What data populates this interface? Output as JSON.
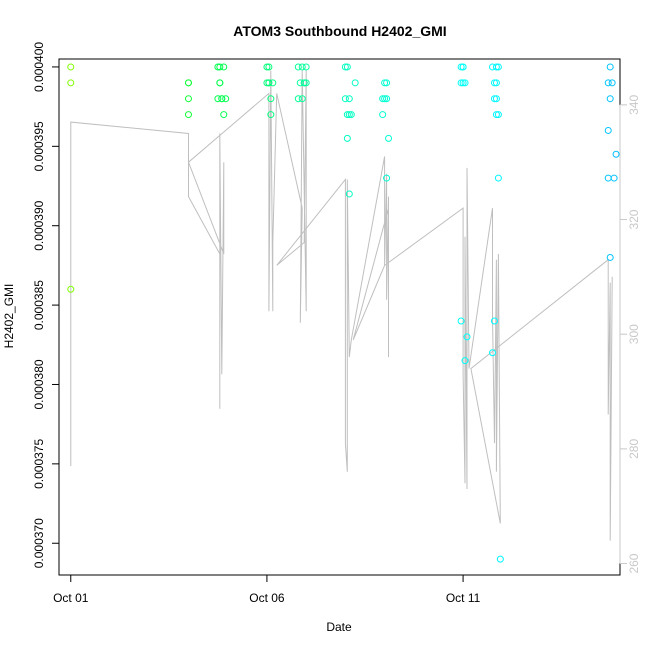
{
  "chart_data": {
    "type": "scatter",
    "title": "ATOM3 Southbound H2402_GMI",
    "xlabel": "Date",
    "ylabel": "H2402_GMI",
    "x_ticks": [
      "Oct 01",
      "Oct 06",
      "Oct 11"
    ],
    "y_ticks": [
      "0.000370",
      "0.000375",
      "0.000380",
      "0.000385",
      "0.000390",
      "0.000395",
      "0.000400"
    ],
    "y2_ticks": [
      "260",
      "280",
      "300",
      "320",
      "340"
    ],
    "xlim_days": [
      0.7,
      15.0
    ],
    "ylim": [
      0.000368,
      0.0004005
    ],
    "y2lim": [
      258,
      348
    ],
    "colors": {
      "axis": "#000000",
      "secondary_axis": "#c8c8c8",
      "line": "#bfbfbf"
    },
    "point_series": {
      "name": "H2402_GMI",
      "color_gradient": [
        "#80ff00",
        "#00ff40",
        "#00ffc0",
        "#00ffff",
        "#00c0ff"
      ],
      "points": [
        {
          "x": 1.0,
          "y": 0.0004
        },
        {
          "x": 1.0,
          "y": 0.000399
        },
        {
          "x": 1.0,
          "y": 0.000386
        },
        {
          "x": 4.0,
          "y": 0.000399
        },
        {
          "x": 4.0,
          "y": 0.000398
        },
        {
          "x": 4.0,
          "y": 0.000397
        },
        {
          "x": 4.0,
          "y": 0.000399
        },
        {
          "x": 4.75,
          "y": 0.0004
        },
        {
          "x": 4.8,
          "y": 0.000399
        },
        {
          "x": 4.85,
          "y": 0.000398
        },
        {
          "x": 4.8,
          "y": 0.000399
        },
        {
          "x": 4.9,
          "y": 0.0004
        },
        {
          "x": 4.75,
          "y": 0.000398
        },
        {
          "x": 4.85,
          "y": 0.000398
        },
        {
          "x": 4.8,
          "y": 0.0004
        },
        {
          "x": 4.95,
          "y": 0.000398
        },
        {
          "x": 4.9,
          "y": 0.000397
        },
        {
          "x": 6.0,
          "y": 0.0004
        },
        {
          "x": 6.05,
          "y": 0.000399
        },
        {
          "x": 6.1,
          "y": 0.000398
        },
        {
          "x": 6.05,
          "y": 0.000399
        },
        {
          "x": 6.15,
          "y": 0.000399
        },
        {
          "x": 6.1,
          "y": 0.000397
        },
        {
          "x": 6.0,
          "y": 0.000399
        },
        {
          "x": 6.05,
          "y": 0.0004
        },
        {
          "x": 6.8,
          "y": 0.0004
        },
        {
          "x": 6.9,
          "y": 0.0004
        },
        {
          "x": 6.95,
          "y": 0.000399
        },
        {
          "x": 6.8,
          "y": 0.000398
        },
        {
          "x": 6.85,
          "y": 0.000399
        },
        {
          "x": 7.0,
          "y": 0.0004
        },
        {
          "x": 6.9,
          "y": 0.000398
        },
        {
          "x": 6.95,
          "y": 0.000399
        },
        {
          "x": 7.0,
          "y": 0.000399
        },
        {
          "x": 8.0,
          "y": 0.0004
        },
        {
          "x": 8.05,
          "y": 0.0004
        },
        {
          "x": 8.1,
          "y": 0.000398
        },
        {
          "x": 8.0,
          "y": 0.000398
        },
        {
          "x": 8.05,
          "y": 0.000397
        },
        {
          "x": 8.15,
          "y": 0.000397
        },
        {
          "x": 8.25,
          "y": 0.000399
        },
        {
          "x": 8.1,
          "y": 0.000397
        },
        {
          "x": 8.05,
          "y": 0.0003955
        },
        {
          "x": 8.1,
          "y": 0.000392
        },
        {
          "x": 8.95,
          "y": 0.000398
        },
        {
          "x": 9.05,
          "y": 0.000399
        },
        {
          "x": 9.0,
          "y": 0.000398
        },
        {
          "x": 9.05,
          "y": 0.000398
        },
        {
          "x": 8.95,
          "y": 0.000397
        },
        {
          "x": 9.0,
          "y": 0.000399
        },
        {
          "x": 9.1,
          "y": 0.0003955
        },
        {
          "x": 9.05,
          "y": 0.000393
        },
        {
          "x": 10.95,
          "y": 0.0004
        },
        {
          "x": 11.0,
          "y": 0.0004
        },
        {
          "x": 11.05,
          "y": 0.000399
        },
        {
          "x": 11.0,
          "y": 0.000399
        },
        {
          "x": 10.95,
          "y": 0.000399
        },
        {
          "x": 11.0,
          "y": 0.0004
        },
        {
          "x": 10.95,
          "y": 0.000384
        },
        {
          "x": 11.1,
          "y": 0.000383
        },
        {
          "x": 11.05,
          "y": 0.0003815
        },
        {
          "x": 11.75,
          "y": 0.0004
        },
        {
          "x": 11.85,
          "y": 0.0004
        },
        {
          "x": 11.9,
          "y": 0.0004
        },
        {
          "x": 11.8,
          "y": 0.000399
        },
        {
          "x": 11.85,
          "y": 0.000399
        },
        {
          "x": 11.8,
          "y": 0.000398
        },
        {
          "x": 11.85,
          "y": 0.000398
        },
        {
          "x": 11.9,
          "y": 0.000397
        },
        {
          "x": 11.85,
          "y": 0.000397
        },
        {
          "x": 11.9,
          "y": 0.000393
        },
        {
          "x": 11.8,
          "y": 0.000384
        },
        {
          "x": 11.75,
          "y": 0.000382
        },
        {
          "x": 11.95,
          "y": 0.000369
        },
        {
          "x": 14.75,
          "y": 0.0004
        },
        {
          "x": 14.7,
          "y": 0.000399
        },
        {
          "x": 14.8,
          "y": 0.000399
        },
        {
          "x": 14.75,
          "y": 0.000398
        },
        {
          "x": 14.7,
          "y": 0.000396
        },
        {
          "x": 14.9,
          "y": 0.0003945
        },
        {
          "x": 14.85,
          "y": 0.000393
        },
        {
          "x": 14.7,
          "y": 0.000393
        },
        {
          "x": 14.75,
          "y": 0.000388
        }
      ]
    },
    "line_series": {
      "name": "secondary",
      "color": "#bfbfbf",
      "points": [
        {
          "x": 1.0,
          "y": 277
        },
        {
          "x": 1.0,
          "y": 337
        },
        {
          "x": 4.0,
          "y": 335
        },
        {
          "x": 4.0,
          "y": 330
        },
        {
          "x": 4.0,
          "y": 324
        },
        {
          "x": 4.8,
          "y": 314
        },
        {
          "x": 4.8,
          "y": 287
        },
        {
          "x": 4.8,
          "y": 335
        },
        {
          "x": 4.85,
          "y": 293
        },
        {
          "x": 4.9,
          "y": 330
        },
        {
          "x": 4.9,
          "y": 314
        },
        {
          "x": 4.0,
          "y": 330
        },
        {
          "x": 6.05,
          "y": 342
        },
        {
          "x": 6.05,
          "y": 304
        },
        {
          "x": 6.1,
          "y": 346
        },
        {
          "x": 6.15,
          "y": 304
        },
        {
          "x": 6.15,
          "y": 316
        },
        {
          "x": 6.25,
          "y": 342
        },
        {
          "x": 6.9,
          "y": 322
        },
        {
          "x": 6.85,
          "y": 302
        },
        {
          "x": 6.9,
          "y": 346
        },
        {
          "x": 7.0,
          "y": 304
        },
        {
          "x": 7.0,
          "y": 346
        },
        {
          "x": 6.95,
          "y": 316
        },
        {
          "x": 6.25,
          "y": 312
        },
        {
          "x": 8.0,
          "y": 327
        },
        {
          "x": 8.0,
          "y": 281
        },
        {
          "x": 8.05,
          "y": 276
        },
        {
          "x": 8.05,
          "y": 327
        },
        {
          "x": 8.1,
          "y": 296
        },
        {
          "x": 8.15,
          "y": 299
        },
        {
          "x": 9.0,
          "y": 331
        },
        {
          "x": 9.0,
          "y": 312
        },
        {
          "x": 9.05,
          "y": 328
        },
        {
          "x": 9.05,
          "y": 306
        },
        {
          "x": 9.1,
          "y": 324
        },
        {
          "x": 9.1,
          "y": 296
        },
        {
          "x": 9.1,
          "y": 322
        },
        {
          "x": 8.2,
          "y": 299
        },
        {
          "x": 9.0,
          "y": 312
        },
        {
          "x": 11.0,
          "y": 322
        },
        {
          "x": 11.0,
          "y": 293
        },
        {
          "x": 11.05,
          "y": 274
        },
        {
          "x": 11.05,
          "y": 317
        },
        {
          "x": 11.1,
          "y": 273
        },
        {
          "x": 11.1,
          "y": 329
        },
        {
          "x": 11.15,
          "y": 294
        },
        {
          "x": 11.75,
          "y": 322
        },
        {
          "x": 11.75,
          "y": 303
        },
        {
          "x": 11.8,
          "y": 281
        },
        {
          "x": 11.85,
          "y": 313
        },
        {
          "x": 11.85,
          "y": 276
        },
        {
          "x": 11.9,
          "y": 314
        },
        {
          "x": 11.95,
          "y": 267
        },
        {
          "x": 11.2,
          "y": 294
        },
        {
          "x": 14.7,
          "y": 313
        },
        {
          "x": 14.7,
          "y": 286
        },
        {
          "x": 14.75,
          "y": 309
        },
        {
          "x": 14.75,
          "y": 264
        },
        {
          "x": 14.8,
          "y": 310
        }
      ]
    }
  }
}
